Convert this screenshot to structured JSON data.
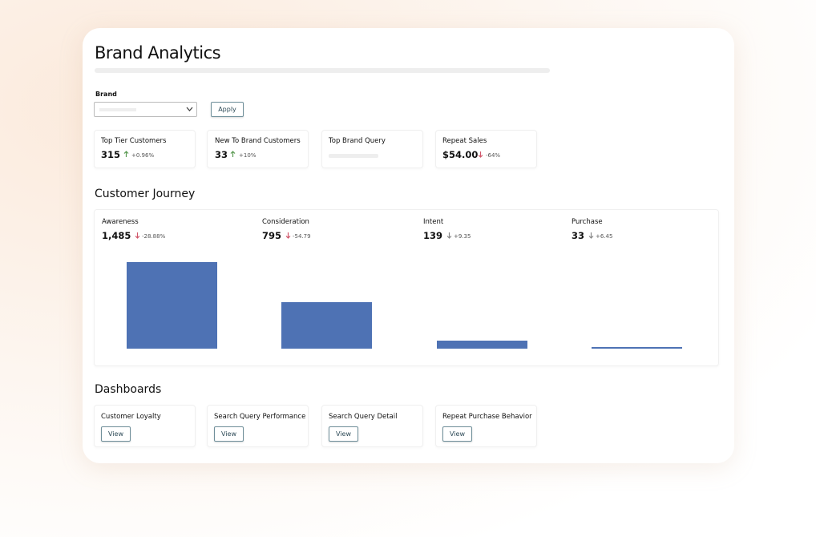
{
  "header": {
    "title": "Brand Analytics"
  },
  "filter": {
    "label": "Brand",
    "button": "Apply"
  },
  "kpis": [
    {
      "label": "Top Tier Customers",
      "value": "315",
      "change": "+0.96%"
    },
    {
      "label": "New To Brand Customers",
      "value": "33",
      "change": "+10%"
    },
    {
      "label": "Top Brand Query"
    },
    {
      "label": "Repeat Sales",
      "value": "$54.00",
      "change": "-64%"
    }
  ],
  "chart_data": {
    "type": "bar",
    "title": "Customer Journey",
    "categories": [
      "Awareness",
      "Consideration",
      "Intent",
      "Purchase"
    ],
    "values": [
      1485,
      795,
      139,
      33
    ],
    "value_labels": [
      "1,485",
      "795",
      "139",
      "33"
    ],
    "changes": [
      "-28.88%",
      "-54.79",
      "+9.35",
      "+6.45"
    ],
    "color": "#4e72b4"
  },
  "dashboards": {
    "title": "Dashboards",
    "items": [
      {
        "label": "Customer Loyalty",
        "button": "View"
      },
      {
        "label": "Search Query Performance",
        "button": "View"
      },
      {
        "label": "Search Query Detail",
        "button": "View"
      },
      {
        "label": "Repeat Purchase Behavior",
        "button": "View"
      }
    ]
  }
}
